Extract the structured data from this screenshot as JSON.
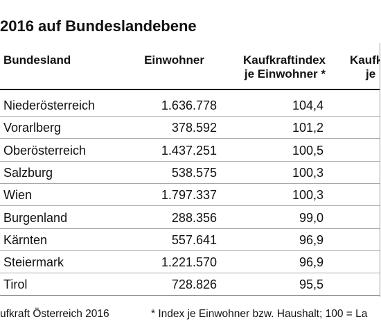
{
  "title": "2016 auf Bundeslandebene",
  "header": {
    "bundesland": "Bundesland",
    "einwohner": "Einwohner",
    "kki_line1": "Kaufkraftindex",
    "kki_line2": "je Einwohner *",
    "col4_line1": "Kaufk",
    "col4_line2": "je Ha"
  },
  "rows": [
    {
      "bundesland": "Niederösterreich",
      "einwohner": "1.636.778",
      "kaufkraftindex": "104,4"
    },
    {
      "bundesland": "Vorarlberg",
      "einwohner": "378.592",
      "kaufkraftindex": "101,2"
    },
    {
      "bundesland": "Oberösterreich",
      "einwohner": "1.437.251",
      "kaufkraftindex": "100,5"
    },
    {
      "bundesland": "Salzburg",
      "einwohner": "538.575",
      "kaufkraftindex": "100,3"
    },
    {
      "bundesland": "Wien",
      "einwohner": "1.797.337",
      "kaufkraftindex": "100,3"
    },
    {
      "bundesland": "Burgenland",
      "einwohner": "288.356",
      "kaufkraftindex": "99,0"
    },
    {
      "bundesland": "Kärnten",
      "einwohner": "557.641",
      "kaufkraftindex": "96,9"
    },
    {
      "bundesland": "Steiermark",
      "einwohner": "1.221.570",
      "kaufkraftindex": "96,9"
    },
    {
      "bundesland": "Tirol",
      "einwohner": "728.826",
      "kaufkraftindex": "95,5"
    }
  ],
  "footer": {
    "source": "ufkraft Österreich 2016",
    "note": "* Index je Einwohner bzw. Haushalt; 100 = La"
  }
}
